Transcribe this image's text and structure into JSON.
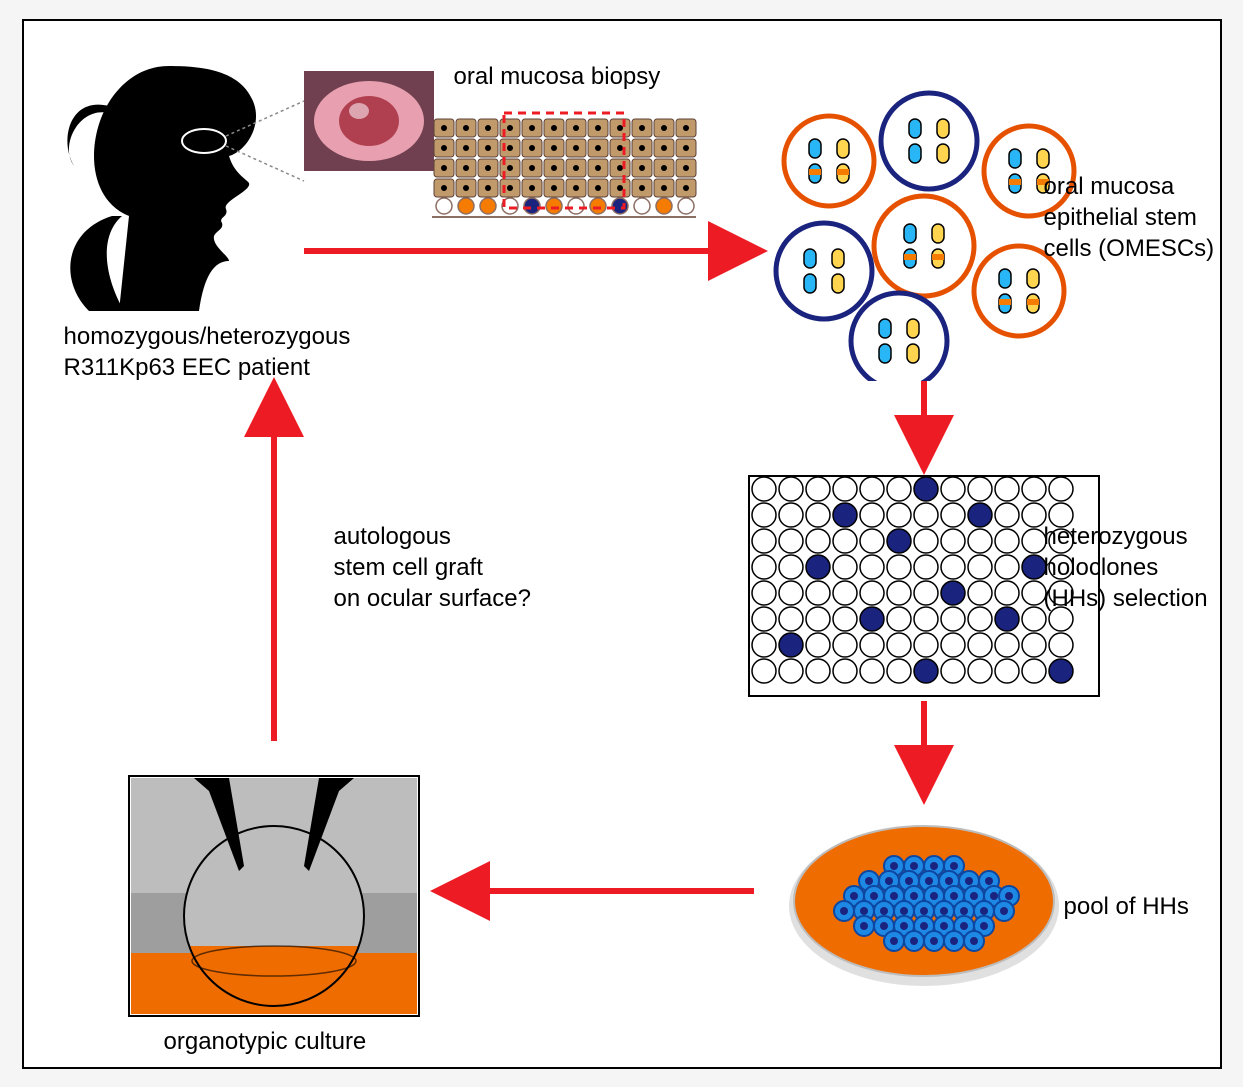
{
  "type": "flowchart",
  "background_color": "#ffffff",
  "border_color": "#000000",
  "font_family": "Arial",
  "labels": {
    "patient_line1": "homozygous/heterozygous",
    "patient_line2": "R311Kp63 EEC patient",
    "biopsy": "oral mucosa biopsy",
    "omesc_line1": "oral mucosa",
    "omesc_line2": "epithelial stem",
    "omesc_line3": "cells (OMESCs)",
    "hh_line1": "heterozygous",
    "hh_line2": "holoclones",
    "hh_line3": "(HHs) selection",
    "pool": "pool of HHs",
    "organotypic": "organotypic culture",
    "graft_line1": "autologous",
    "graft_line2": "stem cell graft",
    "graft_line3": "on ocular surface?"
  },
  "colors": {
    "arrow": "#ed1c24",
    "silhouette": "#000000",
    "eye_dot": "#ffffff",
    "eye_outline": "#888888",
    "biopsy_cell_fill": "#c19a6b",
    "biopsy_cell_stroke": "#5d4037",
    "biopsy_selection": "#ed1c24",
    "biopsy_nucleus": "#000000",
    "biopsy_basal_orange": "#f57c00",
    "biopsy_basal_blue": "#1a237e",
    "biopsy_basal_white": "#ffffff",
    "biopsy_basal_stroke": "#8d6e63",
    "cell_orange_stroke": "#e65100",
    "cell_blue_stroke": "#1a237e",
    "chrom_blue": "#29b6f6",
    "chrom_yellow": "#ffd54f",
    "chrom_band": "#f57c00",
    "chrom_stroke": "#000000",
    "plate_stroke": "#000000",
    "plate_well_fill": "#ffffff",
    "plate_well_selected": "#1a237e",
    "dish_fill": "#ef6c00",
    "dish_rim": "#e0e0e0",
    "dish_stroke": "#bdbdbd",
    "pool_cell_fill": "#1e88e5",
    "pool_cell_stroke": "#0d47a1",
    "pool_nucleus": "#1a237e",
    "organo_bg_top": "#bdbdbd",
    "organo_bg_mid": "#9e9e9e",
    "organo_bg_bottom": "#ef6c00",
    "organo_pipette": "#000000",
    "eye_photo_pink": "#e8a0b0",
    "eye_photo_red": "#b04050",
    "eye_photo_dark": "#704050"
  },
  "wellplate": {
    "rows": 8,
    "cols": 12,
    "selected": [
      [
        1,
        3
      ],
      [
        1,
        8
      ],
      [
        2,
        5
      ],
      [
        3,
        2
      ],
      [
        3,
        10
      ],
      [
        4,
        7
      ],
      [
        5,
        4
      ],
      [
        5,
        9
      ],
      [
        6,
        1
      ],
      [
        7,
        6
      ],
      [
        7,
        11
      ],
      [
        0,
        6
      ]
    ]
  },
  "positions": {
    "font_size": 24
  }
}
